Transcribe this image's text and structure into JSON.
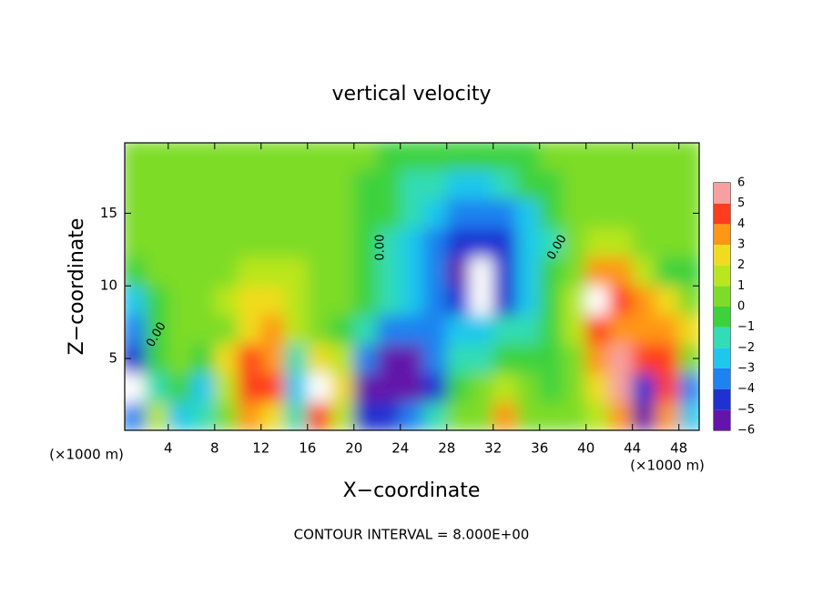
{
  "chart_data": {
    "type": "heatmap",
    "title": "vertical velocity",
    "xlabel": "X−coordinate",
    "ylabel": "Z−coordinate",
    "x_unit": "(×1000 m)",
    "y_unit": "(×1000 m)",
    "footer": "CONTOUR INTERVAL = 8.000E+00",
    "annotations": [
      "0.00",
      "0.00",
      "0.00"
    ],
    "xlim": [
      0.25,
      49.75
    ],
    "ylim": [
      0.05,
      19.85
    ],
    "xticks": [
      4,
      8,
      12,
      16,
      20,
      24,
      28,
      32,
      36,
      40,
      44,
      48
    ],
    "yticks": [
      5,
      10,
      15
    ],
    "x": [
      1,
      3,
      5,
      7,
      9,
      11,
      13,
      15,
      17,
      19,
      21,
      23,
      25,
      27,
      29,
      31,
      33,
      35,
      37,
      39,
      41,
      43,
      45,
      47,
      49
    ],
    "y": [
      1,
      3,
      5,
      7,
      9,
      11,
      13,
      15,
      17,
      19
    ],
    "z": [
      [
        -3,
        2,
        -2.5,
        -1.5,
        1,
        4,
        3,
        -1.5,
        5,
        2,
        -4,
        -4,
        -3,
        -1.5,
        0.2,
        0.5,
        4,
        0.8,
        0.4,
        0.5,
        2,
        4,
        -5,
        4,
        -2
      ],
      [
        -6.5,
        -1,
        -0.5,
        -2,
        2,
        5,
        4.5,
        -2,
        6.5,
        3,
        -5,
        -6,
        -5.5,
        -4,
        -0.5,
        0.5,
        1.5,
        0.5,
        0,
        0.5,
        2.5,
        5.5,
        -4,
        5,
        -3
      ],
      [
        -4,
        -0.5,
        0.5,
        -0.5,
        3,
        4.5,
        4,
        -1,
        3,
        2,
        -3,
        -5,
        -5,
        -3,
        -1.5,
        -1,
        -0.8,
        -0.5,
        -0.3,
        1,
        4,
        5.5,
        5,
        5,
        1
      ],
      [
        -3,
        -0.5,
        0.5,
        0.5,
        1,
        3,
        3.5,
        1.5,
        0.5,
        -0.5,
        -1.5,
        -3,
        -3.5,
        -3,
        -2.5,
        -2.2,
        -1.8,
        -1.2,
        -0.3,
        2,
        4.5,
        4,
        3.5,
        4,
        2.5
      ],
      [
        -2,
        -0.3,
        0.5,
        0.8,
        1.2,
        2.5,
        3,
        2,
        1,
        0.5,
        -0.5,
        -1.5,
        -2.5,
        -3.5,
        -4.8,
        -6.5,
        -4.5,
        -2.5,
        -0.5,
        2,
        6.5,
        4.5,
        3.5,
        2.5,
        1
      ],
      [
        -0.5,
        0.3,
        0.7,
        1,
        1,
        1.5,
        1.6,
        1.4,
        1,
        0.5,
        -0.3,
        -1.2,
        -2.5,
        -3.8,
        -5,
        -6.2,
        -4.8,
        -2.8,
        -0.8,
        1,
        4,
        4,
        2,
        -0.5,
        -0.3
      ],
      [
        0.2,
        0.4,
        0.7,
        1,
        0.9,
        0.8,
        0.9,
        1,
        0.8,
        0.5,
        0,
        -1,
        -2.2,
        -3.5,
        -4.5,
        -4.6,
        -4,
        -2.5,
        -1,
        0.3,
        1.2,
        1.4,
        1,
        0.5,
        0.3
      ],
      [
        0.1,
        0.3,
        0.6,
        1,
        1,
        0.8,
        0.6,
        0.8,
        0.6,
        0.4,
        0,
        -0.8,
        -1.8,
        -2.8,
        -3.5,
        -3.5,
        -3,
        -2,
        -0.8,
        0.2,
        0.5,
        0.5,
        0.5,
        0.3,
        0.3
      ],
      [
        0.2,
        0.3,
        0.6,
        0.8,
        0.6,
        0.5,
        0.5,
        0.6,
        0.5,
        0.3,
        0,
        -0.5,
        -1.2,
        -1.8,
        -2,
        -2,
        -1.5,
        -0.8,
        -0.2,
        0.3,
        0.4,
        0.4,
        0.4,
        0.3,
        0.3
      ],
      [
        0.3,
        0.3,
        0.4,
        0.5,
        0.5,
        0.5,
        0.4,
        0.3,
        0.3,
        0.3,
        0.2,
        0,
        -0.3,
        -0.5,
        -0.5,
        -0.5,
        -0.3,
        0,
        0.2,
        0.3,
        0.3,
        0.3,
        0.3,
        0.3,
        0.3
      ]
    ],
    "colorbar": {
      "levels": [
        {
          "value": -6,
          "label": "−6"
        },
        {
          "value": -5,
          "label": "−5"
        },
        {
          "value": -4,
          "label": "−4"
        },
        {
          "value": -3,
          "label": "−3"
        },
        {
          "value": -2,
          "label": "−2"
        },
        {
          "value": -1,
          "label": "−1"
        },
        0,
        1,
        2,
        3,
        4,
        5,
        6
      ],
      "colors": [
        "#6414aa",
        "#1e32d2",
        "#1e82f0",
        "#1ec8ec",
        "#32dcb4",
        "#3cd23c",
        "#7ddc28",
        "#b9e61e",
        "#f0dc1e",
        "#ff9614",
        "#ff3c1e",
        "#f8a0a0"
      ],
      "out_of_range_color": "#ffffff"
    }
  }
}
